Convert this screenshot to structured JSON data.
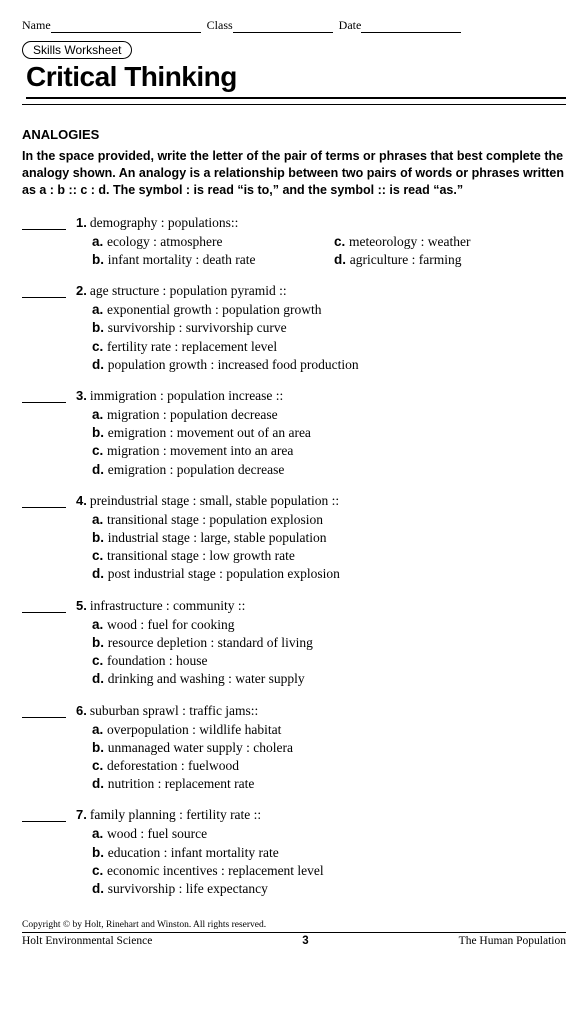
{
  "header": {
    "name_label": "Name",
    "class_label": "Class",
    "date_label": "Date"
  },
  "badge": "Skills Worksheet",
  "title": "Critical Thinking",
  "section": "ANALOGIES",
  "instructions": "In the space provided, write the letter of the pair of terms or phrases that best complete the analogy shown. An analogy is a relationship between two pairs of words or phrases written as a : b :: c : d. The symbol : is read “is to,” and the symbol :: is read “as.”",
  "q1": {
    "num": "1.",
    "text": "demography : populations::",
    "a": "ecology : atmosphere",
    "b": "infant mortality : death rate",
    "c": "meteorology : weather",
    "d": "agriculture : farming"
  },
  "q2": {
    "num": "2.",
    "text": "age structure : population pyramid ::",
    "a": "exponential growth : population growth",
    "b": "survivorship : survivorship curve",
    "c": "fertility rate : replacement level",
    "d": "population growth : increased food production"
  },
  "q3": {
    "num": "3.",
    "text": "immigration : population increase ::",
    "a": "migration : population decrease",
    "b": "emigration : movement out of an area",
    "c": "migration : movement into an area",
    "d": "emigration : population decrease"
  },
  "q4": {
    "num": "4.",
    "text": "preindustrial stage : small, stable population ::",
    "a": "transitional stage : population explosion",
    "b": "industrial stage : large, stable population",
    "c": "transitional stage : low growth rate",
    "d": "post industrial stage : population explosion"
  },
  "q5": {
    "num": "5.",
    "text": "infrastructure : community ::",
    "a": "wood : fuel for cooking",
    "b": "resource depletion : standard of living",
    "c": "foundation : house",
    "d": "drinking and washing : water supply"
  },
  "q6": {
    "num": "6.",
    "text": "suburban sprawl : traffic jams::",
    "a": "overpopulation : wildlife habitat",
    "b": "unmanaged water supply : cholera",
    "c": "deforestation : fuelwood",
    "d": "nutrition : replacement rate"
  },
  "q7": {
    "num": "7.",
    "text": "family planning : fertility rate ::",
    "a": "wood : fuel source",
    "b": "education : infant mortality rate",
    "c": "economic incentives : replacement level",
    "d": "survivorship : life expectancy"
  },
  "copyright": "Copyright © by Holt, Rinehart and Winston. All rights reserved.",
  "footer_left": "Holt Environmental Science",
  "footer_page": "3",
  "footer_right": "The Human Population"
}
